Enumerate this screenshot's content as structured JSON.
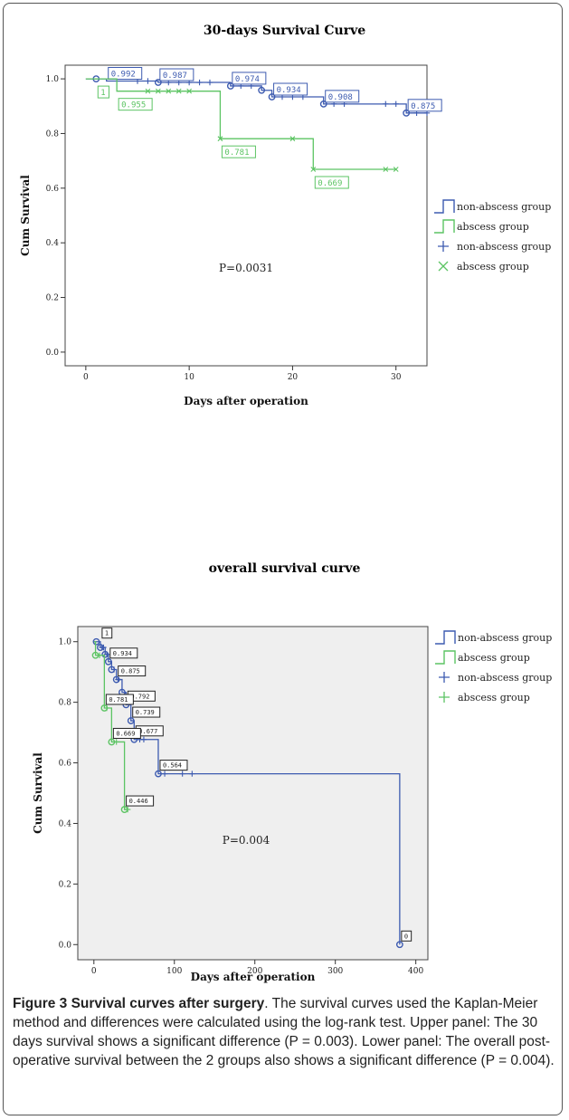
{
  "chart_data": [
    {
      "type": "line",
      "title": "30-days Survival Curve",
      "xlabel": "Days after operation",
      "ylabel": "Cum Survival",
      "xlim": [
        -2,
        33
      ],
      "ylim": [
        -0.05,
        1.05
      ],
      "xticks": [
        "0",
        "10",
        "20",
        "30"
      ],
      "yticks": [
        "0.0",
        "0.2",
        "0.4",
        "0.6",
        "0.8",
        "1.0"
      ],
      "annotation": "P=0.0031",
      "background": "#ffffff",
      "legend": {
        "placement": "right",
        "entries": [
          "non-abscess group",
          "abscess group",
          "non-abscess group",
          "abscess group"
        ]
      },
      "series": [
        {
          "name": "non-abscess group",
          "color": "#3d5bb0",
          "steps": [
            [
              0,
              1.0
            ],
            [
              2,
              0.992
            ],
            [
              7,
              0.987
            ],
            [
              14,
              0.974
            ],
            [
              17,
              0.958
            ],
            [
              18,
              0.934
            ],
            [
              23,
              0.908
            ],
            [
              31,
              0.875
            ],
            [
              33,
              0.875
            ]
          ],
          "event_markers": [
            [
              1,
              1.0
            ],
            [
              7,
              0.987
            ],
            [
              14,
              0.974
            ],
            [
              17,
              0.958
            ],
            [
              18,
              0.934
            ],
            [
              23,
              0.908
            ],
            [
              31,
              0.875
            ]
          ],
          "censored": [
            [
              5,
              0.992
            ],
            [
              6,
              0.992
            ],
            [
              8,
              0.987
            ],
            [
              9,
              0.987
            ],
            [
              10,
              0.987
            ],
            [
              11,
              0.987
            ],
            [
              12,
              0.987
            ],
            [
              15,
              0.974
            ],
            [
              16,
              0.974
            ],
            [
              19,
              0.934
            ],
            [
              20,
              0.934
            ],
            [
              21,
              0.934
            ],
            [
              24,
              0.908
            ],
            [
              25,
              0.908
            ],
            [
              29,
              0.908
            ],
            [
              30,
              0.908
            ],
            [
              32,
              0.875
            ],
            [
              33,
              0.875
            ]
          ],
          "labels": [
            {
              "text": "0.992",
              "x": 2,
              "y": 0.992
            },
            {
              "text": "0.987",
              "x": 7,
              "y": 0.987
            },
            {
              "text": "0.974",
              "x": 14,
              "y": 0.974
            },
            {
              "text": "0.934",
              "x": 18,
              "y": 0.934
            },
            {
              "text": "0.908",
              "x": 23,
              "y": 0.908
            },
            {
              "text": "0.875",
              "x": 31,
              "y": 0.875
            }
          ]
        },
        {
          "name": "abscess group",
          "color": "#5cc463",
          "steps": [
            [
              0,
              1.0
            ],
            [
              3,
              0.955
            ],
            [
              13,
              0.781
            ],
            [
              22,
              0.669
            ]
          ],
          "censored": [
            [
              6,
              0.955
            ],
            [
              7,
              0.955
            ],
            [
              8,
              0.955
            ],
            [
              9,
              0.955
            ],
            [
              10,
              0.955
            ],
            [
              13,
              0.781
            ],
            [
              20,
              0.781
            ],
            [
              22,
              0.669
            ],
            [
              29,
              0.669
            ],
            [
              30,
              0.669
            ]
          ],
          "labels": [
            {
              "text": "1",
              "x": 1,
              "y": 1.0
            },
            {
              "text": "0.955",
              "x": 3,
              "y": 0.955
            },
            {
              "text": "0.781",
              "x": 13,
              "y": 0.781
            },
            {
              "text": "0.669",
              "x": 22,
              "y": 0.669
            }
          ]
        }
      ]
    },
    {
      "type": "line",
      "title": "overall survival curve",
      "xlabel": "Days after operation",
      "ylabel": "Cum Survival",
      "xlim": [
        -20,
        415
      ],
      "ylim": [
        -0.05,
        1.05
      ],
      "xticks": [
        "0",
        "100",
        "200",
        "300",
        "400"
      ],
      "yticks": [
        "0.0",
        "0.2",
        "0.4",
        "0.6",
        "0.8",
        "1.0"
      ],
      "annotation": "P=0.004",
      "background": "#efefef",
      "legend": {
        "placement": "right",
        "entries": [
          "non-abscess group",
          "abscess group",
          "non-abscess group",
          "abscess group"
        ]
      },
      "series": [
        {
          "name": "non-abscess group",
          "color": "#3d5bb0",
          "steps": [
            [
              0,
              1.0
            ],
            [
              8,
              0.981
            ],
            [
              14,
              0.958
            ],
            [
              18,
              0.934
            ],
            [
              22,
              0.908
            ],
            [
              28,
              0.875
            ],
            [
              35,
              0.833
            ],
            [
              40,
              0.792
            ],
            [
              46,
              0.739
            ],
            [
              50,
              0.677
            ],
            [
              80,
              0.564
            ],
            [
              380,
              0.0
            ]
          ],
          "event_markers": [
            [
              3,
              1.0
            ],
            [
              8,
              0.981
            ],
            [
              14,
              0.958
            ],
            [
              18,
              0.934
            ],
            [
              22,
              0.908
            ],
            [
              28,
              0.875
            ],
            [
              35,
              0.833
            ],
            [
              40,
              0.792
            ],
            [
              46,
              0.739
            ],
            [
              50,
              0.677
            ],
            [
              80,
              0.564
            ],
            [
              380,
              0.0
            ]
          ],
          "censored": [
            [
              10,
              0.981
            ],
            [
              12,
              0.981
            ],
            [
              16,
              0.958
            ],
            [
              25,
              0.908
            ],
            [
              30,
              0.875
            ],
            [
              57,
              0.677
            ],
            [
              62,
              0.677
            ],
            [
              88,
              0.564
            ],
            [
              110,
              0.564
            ],
            [
              122,
              0.564
            ]
          ],
          "labels": [
            {
              "text": "1",
              "x": 8,
              "y": 1.0
            },
            {
              "text": "0.934",
              "x": 18,
              "y": 0.934
            },
            {
              "text": "0.875",
              "x": 28,
              "y": 0.875
            },
            {
              "text": "0.792",
              "x": 40,
              "y": 0.792
            },
            {
              "text": "0.739",
              "x": 46,
              "y": 0.739
            },
            {
              "text": "0.677",
              "x": 50,
              "y": 0.677
            },
            {
              "text": "0.564",
              "x": 80,
              "y": 0.564
            },
            {
              "text": "0",
              "x": 380,
              "y": 0.0
            }
          ]
        },
        {
          "name": "abscess group",
          "color": "#5cc463",
          "steps": [
            [
              0,
              1.0
            ],
            [
              2,
              0.955
            ],
            [
              13,
              0.781
            ],
            [
              22,
              0.669
            ],
            [
              38,
              0.446
            ]
          ],
          "event_markers": [
            [
              2,
              0.955
            ],
            [
              13,
              0.781
            ],
            [
              22,
              0.669
            ],
            [
              38,
              0.446
            ]
          ],
          "censored": [
            [
              7,
              0.955
            ],
            [
              16,
              0.781
            ],
            [
              28,
              0.669
            ],
            [
              42,
              0.446
            ]
          ],
          "labels": [
            {
              "text": "0.781",
              "x": 13,
              "y": 0.781
            },
            {
              "text": "0.669",
              "x": 22,
              "y": 0.669
            },
            {
              "text": "0.446",
              "x": 38,
              "y": 0.446
            }
          ]
        }
      ]
    }
  ],
  "caption": {
    "heading": "Figure 3 Survival curves after surgery",
    "text": ". The survival curves used the Kaplan-Meier method and differences were calculated using the log-rank test. Upper panel: The 30 days survival shows a significant difference (P = 0.003). Lower panel: The overall post-operative survival between the 2 groups also shows a significant difference (P = 0.004)."
  }
}
